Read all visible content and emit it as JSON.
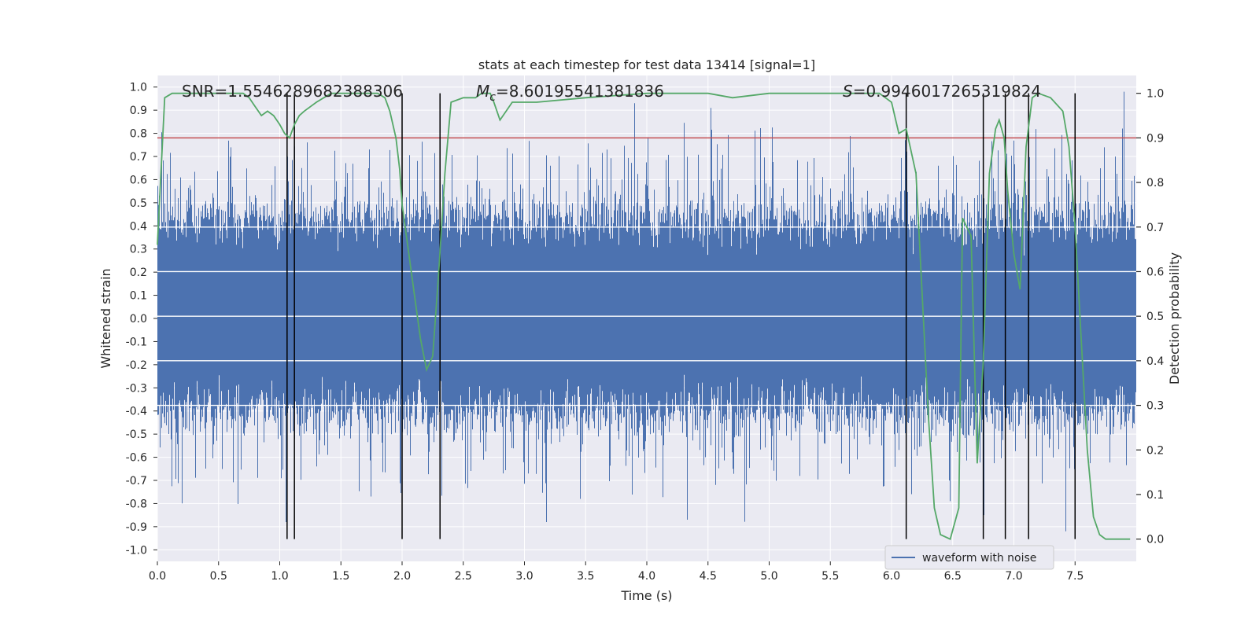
{
  "chart_data": {
    "type": "line",
    "title": "stats at each timestep for test data 13414 [signal=1]",
    "xlabel": "Time (s)",
    "ylabel": "Whitened strain",
    "y2label": "Detection probability",
    "xlim": [
      0.0,
      8.0
    ],
    "ylim": [
      -1.05,
      1.05
    ],
    "y2lim": [
      -0.05,
      1.04
    ],
    "x_ticks": [
      "0.0",
      "0.5",
      "1.0",
      "1.5",
      "2.0",
      "2.5",
      "3.0",
      "3.5",
      "4.0",
      "4.5",
      "5.0",
      "5.5",
      "6.0",
      "6.5",
      "7.0",
      "7.5"
    ],
    "y_ticks": [
      "1.0",
      "0.9",
      "0.8",
      "0.7",
      "0.6",
      "0.5",
      "0.4",
      "0.3",
      "0.2",
      "0.1",
      "0.0",
      "-0.1",
      "-0.2",
      "-0.3",
      "-0.4",
      "-0.5",
      "-0.6",
      "-0.7",
      "-0.8",
      "-0.9",
      "-1.0"
    ],
    "y2_ticks": [
      "1.0",
      "0.9",
      "0.8",
      "0.7",
      "0.6",
      "0.5",
      "0.4",
      "0.3",
      "0.2",
      "0.1",
      "0.0"
    ],
    "annotations": {
      "snr": "SNR=1.5546289682388306",
      "mc_symbol": "M",
      "mc_sub": "c",
      "mc_value": "=8.60195541381836",
      "s_symbol": "S",
      "s_value": "=0.9946017265319824"
    },
    "legend": {
      "label": "waveform with noise",
      "placement": "lower-right"
    },
    "threshold": {
      "y2": 0.9,
      "color": "#c44e52"
    },
    "vertical_lines_x": [
      1.06,
      1.12,
      2.0,
      2.31,
      6.12,
      6.75,
      6.93,
      7.12,
      7.5
    ],
    "waveform": {
      "name": "waveform with noise",
      "color": "#4c72b0",
      "duration_s": 8.0,
      "peak_max": 0.98,
      "peak_min": -0.92
    },
    "detection_probability": {
      "color": "#55a868",
      "x": [
        0.0,
        0.06,
        0.12,
        0.2,
        0.3,
        0.4,
        0.5,
        0.6,
        0.7,
        0.75,
        0.8,
        0.85,
        0.9,
        0.95,
        1.0,
        1.04,
        1.08,
        1.12,
        1.16,
        1.2,
        1.25,
        1.3,
        1.36,
        1.42,
        1.48,
        1.5,
        1.6,
        1.7,
        1.8,
        1.86,
        1.9,
        1.95,
        1.98,
        2.0,
        2.05,
        2.1,
        2.15,
        2.2,
        2.25,
        2.3,
        2.35,
        2.4,
        2.5,
        2.6,
        2.65,
        2.72,
        2.75,
        2.8,
        2.85,
        2.9,
        2.95,
        3.0,
        3.1,
        3.5,
        4.0,
        4.2,
        4.5,
        4.7,
        5.0,
        5.5,
        5.7,
        5.8,
        5.9,
        5.95,
        6.0,
        6.06,
        6.12,
        6.2,
        6.25,
        6.3,
        6.35,
        6.4,
        6.48,
        6.55,
        6.58,
        6.65,
        6.7,
        6.75,
        6.8,
        6.85,
        6.88,
        6.92,
        6.95,
        7.0,
        7.05,
        7.1,
        7.15,
        7.2,
        7.3,
        7.4,
        7.45,
        7.5,
        7.55,
        7.6,
        7.65,
        7.7,
        7.75,
        7.8,
        7.9,
        7.95
      ],
      "y": [
        0.66,
        0.99,
        1.0,
        1.0,
        1.0,
        1.0,
        1.0,
        1.0,
        1.0,
        0.99,
        0.97,
        0.95,
        0.96,
        0.95,
        0.93,
        0.91,
        0.9,
        0.93,
        0.95,
        0.96,
        0.97,
        0.98,
        0.99,
        1.0,
        1.0,
        1.0,
        1.0,
        1.0,
        1.0,
        0.99,
        0.96,
        0.9,
        0.83,
        0.75,
        0.65,
        0.55,
        0.45,
        0.38,
        0.41,
        0.6,
        0.82,
        0.98,
        0.99,
        0.99,
        1.0,
        1.0,
        0.98,
        0.94,
        0.96,
        0.98,
        0.98,
        0.98,
        0.98,
        0.99,
        1.0,
        1.0,
        1.0,
        0.99,
        1.0,
        1.0,
        1.0,
        1.0,
        1.0,
        0.99,
        0.98,
        0.91,
        0.92,
        0.82,
        0.55,
        0.28,
        0.07,
        0.01,
        0.0,
        0.07,
        0.72,
        0.68,
        0.17,
        0.4,
        0.82,
        0.92,
        0.94,
        0.9,
        0.78,
        0.64,
        0.56,
        0.88,
        0.99,
        1.0,
        0.99,
        0.96,
        0.88,
        0.7,
        0.45,
        0.2,
        0.05,
        0.01,
        0.0,
        0.0,
        0.0,
        0.0
      ]
    }
  }
}
